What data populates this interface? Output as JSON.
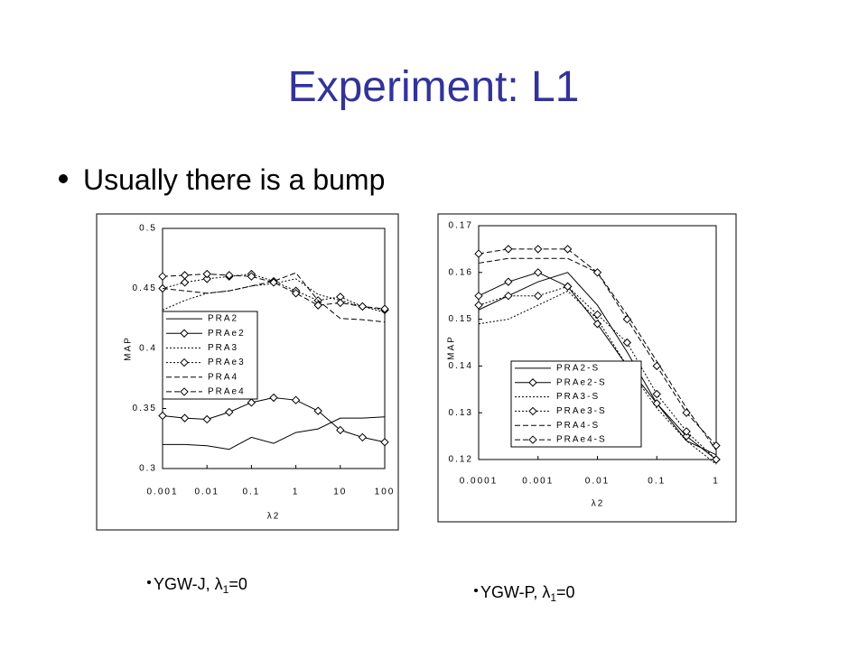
{
  "header": {
    "title": "Experiment: L1"
  },
  "bullets": [
    "Usually there is a bump"
  ],
  "chart_data": [
    {
      "type": "line",
      "xscale": "log",
      "ylabel": "MAP",
      "xlabel": "λ2",
      "x": [
        0.001,
        0.00316,
        0.01,
        0.0316,
        0.1,
        0.316,
        1,
        3.16,
        10,
        31.6,
        100
      ],
      "xlim": [
        0.001,
        100
      ],
      "xticks": [
        0.001,
        0.01,
        0.1,
        1,
        10,
        100
      ],
      "ylim": [
        0.3,
        0.5
      ],
      "yticks": [
        0.3,
        0.35,
        0.4,
        0.45,
        0.5
      ],
      "series": [
        {
          "name": "PRA2",
          "color": "#000000",
          "style": "solid",
          "marker": "none",
          "values": [
            0.32,
            0.32,
            0.319,
            0.316,
            0.326,
            0.321,
            0.33,
            0.333,
            0.342,
            0.342,
            0.343
          ]
        },
        {
          "name": "PRAe2",
          "color": "#000000",
          "style": "solid",
          "marker": "diamond",
          "values": [
            0.344,
            0.342,
            0.341,
            0.347,
            0.355,
            0.359,
            0.357,
            0.348,
            0.332,
            0.326,
            0.322
          ]
        },
        {
          "name": "PRA3",
          "color": "#000000",
          "style": "dotted",
          "marker": "none",
          "values": [
            0.432,
            0.44,
            0.446,
            0.448,
            0.452,
            0.454,
            0.458,
            0.445,
            0.44,
            0.435,
            0.43
          ]
        },
        {
          "name": "PRAe3",
          "color": "#000000",
          "style": "dotted",
          "marker": "diamond",
          "values": [
            0.45,
            0.455,
            0.458,
            0.46,
            0.462,
            0.456,
            0.448,
            0.44,
            0.443,
            0.435,
            0.432
          ]
        },
        {
          "name": "PRA4",
          "color": "#000000",
          "style": "dashed",
          "marker": "none",
          "values": [
            0.45,
            0.448,
            0.446,
            0.448,
            0.452,
            0.456,
            0.463,
            0.44,
            0.425,
            0.424,
            0.422
          ]
        },
        {
          "name": "PRAe4",
          "color": "#000000",
          "style": "dashed",
          "marker": "diamond",
          "values": [
            0.46,
            0.461,
            0.462,
            0.461,
            0.46,
            0.455,
            0.446,
            0.436,
            0.438,
            0.435,
            0.433
          ]
        }
      ]
    },
    {
      "type": "line",
      "xscale": "log",
      "ylabel": "MAP",
      "xlabel": "λ2",
      "x": [
        0.0001,
        0.000316,
        0.001,
        0.00316,
        0.01,
        0.0316,
        0.1,
        0.316,
        1
      ],
      "xlim": [
        0.0001,
        1
      ],
      "xticks": [
        0.0001,
        0.001,
        0.01,
        0.1,
        1
      ],
      "ylim": [
        0.12,
        0.17
      ],
      "yticks": [
        0.12,
        0.13,
        0.14,
        0.15,
        0.16,
        0.17
      ],
      "series": [
        {
          "name": "PRA2-S",
          "color": "#000000",
          "style": "solid",
          "marker": "none",
          "values": [
            0.152,
            0.155,
            0.158,
            0.16,
            0.153,
            0.143,
            0.132,
            0.124,
            0.121
          ]
        },
        {
          "name": "PRAe2-S",
          "color": "#000000",
          "style": "solid",
          "marker": "diamond",
          "values": [
            0.155,
            0.158,
            0.16,
            0.157,
            0.149,
            0.14,
            0.132,
            0.125,
            0.12
          ]
        },
        {
          "name": "PRA3-S",
          "color": "#000000",
          "style": "dotted",
          "marker": "none",
          "values": [
            0.149,
            0.15,
            0.153,
            0.156,
            0.15,
            0.14,
            0.131,
            0.124,
            0.119
          ]
        },
        {
          "name": "PRAe3-S",
          "color": "#000000",
          "style": "dotted",
          "marker": "diamond",
          "values": [
            0.153,
            0.155,
            0.155,
            0.157,
            0.151,
            0.145,
            0.134,
            0.126,
            0.12
          ]
        },
        {
          "name": "PRA4-S",
          "color": "#000000",
          "style": "dashed",
          "marker": "none",
          "values": [
            0.162,
            0.163,
            0.163,
            0.163,
            0.16,
            0.151,
            0.141,
            0.131,
            0.122
          ]
        },
        {
          "name": "PRAe4-S",
          "color": "#000000",
          "style": "dashed",
          "marker": "diamond",
          "values": [
            0.164,
            0.165,
            0.165,
            0.165,
            0.16,
            0.15,
            0.14,
            0.13,
            0.123
          ]
        }
      ]
    }
  ],
  "captions": [
    {
      "text": "YGW-J, λ",
      "sub": "1",
      "rest": "=0"
    },
    {
      "text": "YGW-P, λ",
      "sub": "1",
      "rest": "=0"
    }
  ]
}
